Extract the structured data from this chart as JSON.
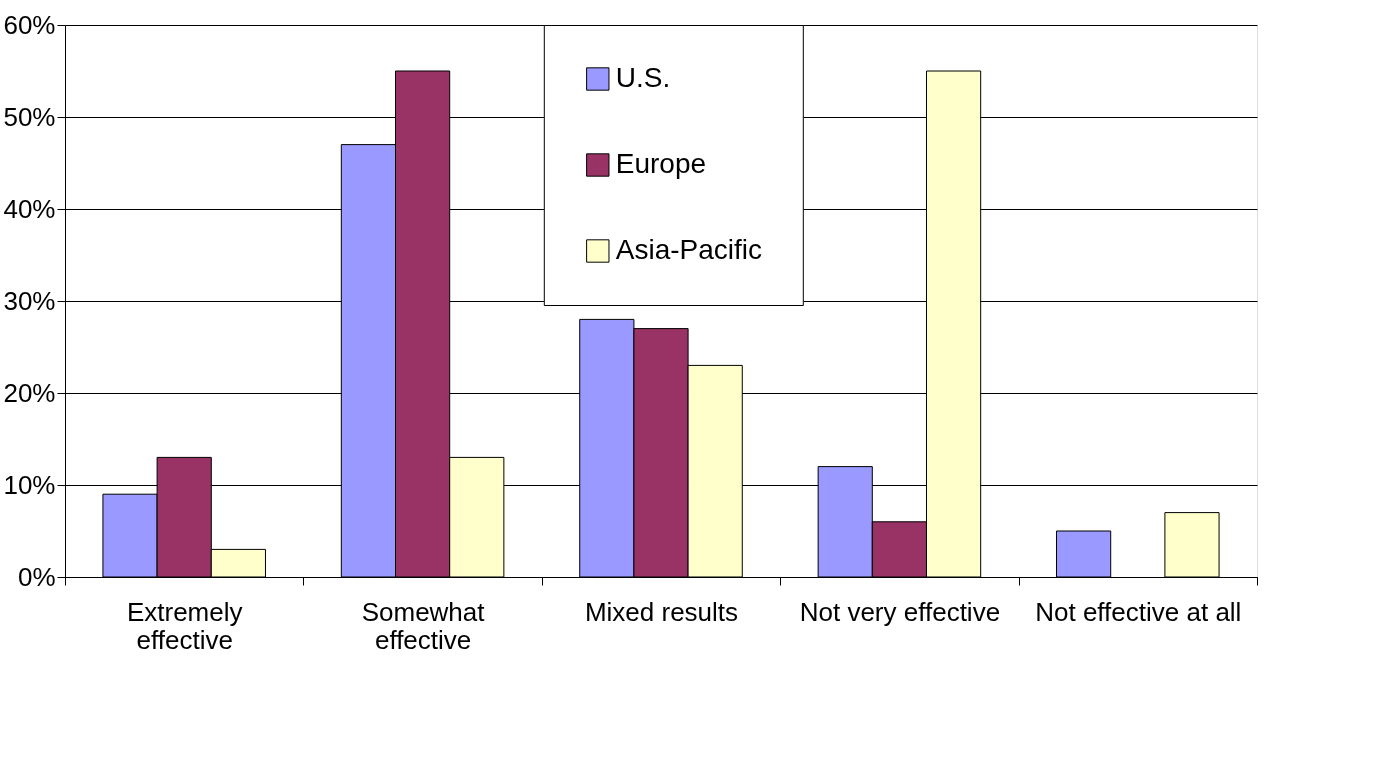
{
  "chart_data": {
    "type": "bar",
    "categories": [
      "Extremely\neffective",
      "Somewhat\neffective",
      "Mixed results",
      "Not very effective",
      "Not effective at all"
    ],
    "series": [
      {
        "name": "U.S.",
        "color": "#9999ff",
        "values": [
          9,
          47,
          28,
          12,
          5
        ]
      },
      {
        "name": "Europe",
        "color": "#993366",
        "values": [
          13,
          55,
          27,
          6,
          null
        ]
      },
      {
        "name": "Asia-Pacific",
        "color": "#ffffcc",
        "values": [
          3,
          13,
          23,
          55,
          7
        ]
      }
    ],
    "ylim": [
      0,
      60
    ],
    "yticks": [
      {
        "value": 0,
        "label": "0%"
      },
      {
        "value": 10,
        "label": "10%"
      },
      {
        "value": 20,
        "label": "20%"
      },
      {
        "value": 30,
        "label": "30%"
      },
      {
        "value": 40,
        "label": "40%"
      },
      {
        "value": 50,
        "label": "50%"
      },
      {
        "value": 60,
        "label": "60%"
      }
    ],
    "grid": "y",
    "legend": "top"
  }
}
